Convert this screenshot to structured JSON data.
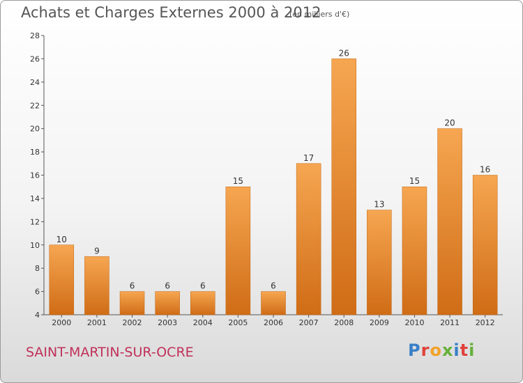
{
  "title": "Achats et Charges Externes 2000 à 2012",
  "subtitle": "(en milliers d'€)",
  "commune": "SAINT-MARTIN-SUR-OCRE",
  "logo": {
    "text": "Proxiti",
    "letter_colors": [
      "#3a7fc8",
      "#e0413a",
      "#f2a22a",
      "#66b03a",
      "#3a7fc8",
      "#e0413a",
      "#66b03a"
    ]
  },
  "colors": {
    "bar_light": "#f6a651",
    "bar_dark": "#d06c16",
    "commune_text": "#c0305a"
  },
  "chart_data": {
    "type": "bar",
    "title": "Achats et Charges Externes 2000 à 2012",
    "subtitle": "(en milliers d'€)",
    "categories": [
      "2000",
      "2001",
      "2002",
      "2003",
      "2004",
      "2005",
      "2006",
      "2007",
      "2008",
      "2009",
      "2010",
      "2011",
      "2012"
    ],
    "values": [
      10,
      9,
      6,
      6,
      6,
      15,
      6,
      17,
      26,
      13,
      15,
      20,
      16
    ],
    "ylim": [
      4,
      28
    ],
    "yticks": [
      4,
      6,
      8,
      10,
      12,
      14,
      16,
      18,
      20,
      22,
      24,
      26,
      28
    ],
    "grid": false,
    "legend": "none",
    "data_labels": true
  }
}
